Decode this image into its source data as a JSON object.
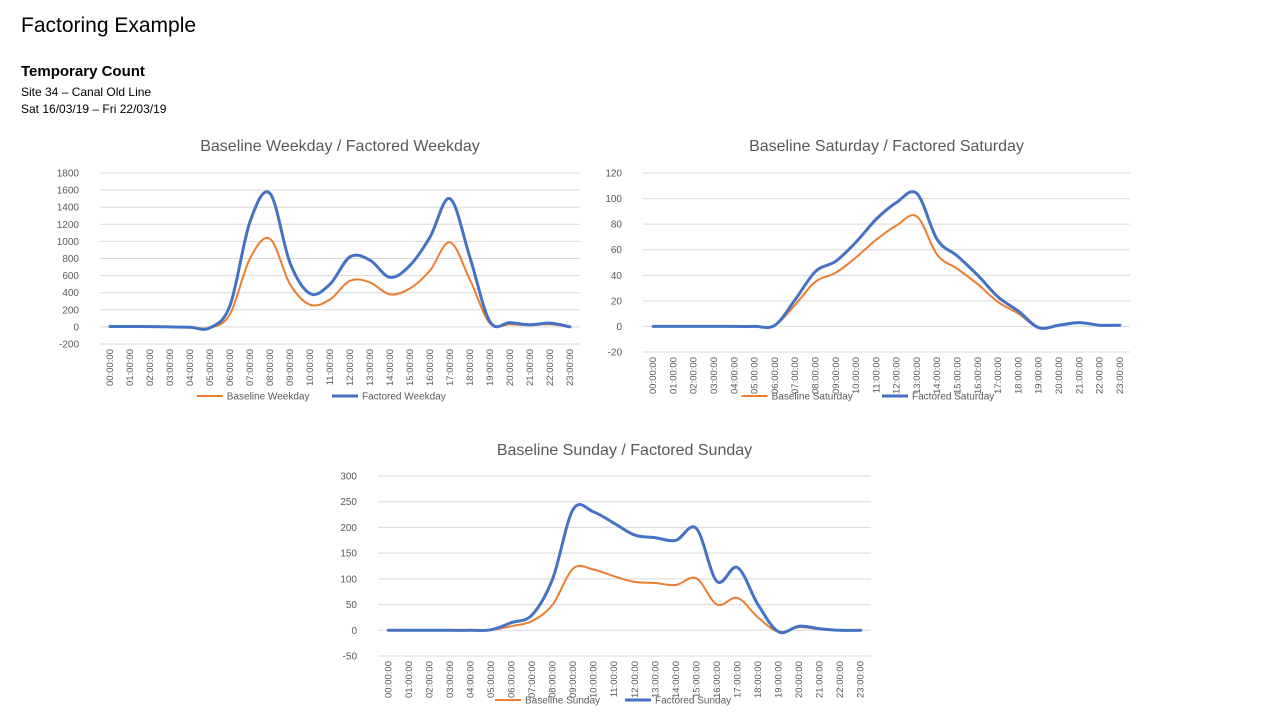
{
  "page": {
    "title": "Factoring Example",
    "subtitle": "Temporary Count",
    "site": "Site 34 – Canal Old Line",
    "dates": "Sat 16/03/19  – Fri 22/03/19"
  },
  "colors": {
    "baseline": "#ED7D31",
    "factored": "#4472C4",
    "grid": "#D9D9D9",
    "text": "#595959"
  },
  "chart_data": [
    {
      "type": "line",
      "title": "Baseline Weekday / Factored Weekday",
      "categories": [
        "00:00:00",
        "01:00:00",
        "02:00:00",
        "03:00:00",
        "04:00:00",
        "05:00:00",
        "06:00:00",
        "07:00:00",
        "08:00:00",
        "09:00:00",
        "10:00:00",
        "11:00:00",
        "12:00:00",
        "13:00:00",
        "14:00:00",
        "15:00:00",
        "16:00:00",
        "17:00:00",
        "18:00:00",
        "19:00:00",
        "20:00:00",
        "21:00:00",
        "22:00:00",
        "23:00:00"
      ],
      "ylim": [
        -200,
        1800
      ],
      "yticks": [
        -200,
        0,
        200,
        400,
        600,
        800,
        1000,
        1200,
        1400,
        1600,
        1800
      ],
      "grid": true,
      "legend": "bottom",
      "series": [
        {
          "name": "Baseline Weekday",
          "values": [
            5,
            5,
            3,
            0,
            -5,
            -10,
            150,
            800,
            1030,
            500,
            260,
            320,
            540,
            520,
            380,
            450,
            660,
            990,
            550,
            40,
            30,
            20,
            30,
            0
          ]
        },
        {
          "name": "Factored Weekday",
          "values": [
            5,
            5,
            3,
            0,
            -5,
            -10,
            250,
            1230,
            1560,
            750,
            390,
            500,
            820,
            780,
            580,
            720,
            1050,
            1500,
            810,
            60,
            50,
            25,
            45,
            0
          ]
        }
      ]
    },
    {
      "type": "line",
      "title": "Baseline Saturday / Factored Saturday",
      "categories": [
        "00:00:00",
        "01:00:00",
        "02:00:00",
        "03:00:00",
        "04:00:00",
        "05:00:00",
        "06:00:00",
        "07:00:00",
        "08:00:00",
        "09:00:00",
        "10:00:00",
        "11:00:00",
        "12:00:00",
        "13:00:00",
        "14:00:00",
        "15:00:00",
        "16:00:00",
        "17:00:00",
        "18:00:00",
        "19:00:00",
        "20:00:00",
        "21:00:00",
        "22:00:00",
        "23:00:00"
      ],
      "ylim": [
        -20,
        120
      ],
      "yticks": [
        -20,
        0,
        20,
        40,
        60,
        80,
        100,
        120
      ],
      "grid": true,
      "legend": "bottom",
      "series": [
        {
          "name": "Baseline Saturday",
          "values": [
            0,
            0,
            0,
            0,
            0,
            0,
            1,
            17,
            35,
            42,
            54,
            68,
            79,
            86,
            56,
            45,
            33,
            19,
            10,
            -1,
            1,
            3,
            1,
            1
          ]
        },
        {
          "name": "Factored Saturday",
          "values": [
            0,
            0,
            0,
            0,
            0,
            0,
            1,
            21,
            43,
            51,
            66,
            84,
            97,
            104,
            68,
            55,
            40,
            23,
            12,
            -1,
            1,
            3,
            1,
            1
          ]
        }
      ]
    },
    {
      "type": "line",
      "title": "Baseline Sunday / Factored Sunday",
      "categories": [
        "00:00:00",
        "01:00:00",
        "02:00:00",
        "03:00:00",
        "04:00:00",
        "05:00:00",
        "06:00:00",
        "07:00:00",
        "08:00:00",
        "09:00:00",
        "10:00:00",
        "11:00:00",
        "12:00:00",
        "13:00:00",
        "14:00:00",
        "15:00:00",
        "16:00:00",
        "17:00:00",
        "18:00:00",
        "19:00:00",
        "20:00:00",
        "21:00:00",
        "22:00:00",
        "23:00:00"
      ],
      "ylim": [
        -50,
        300
      ],
      "yticks": [
        -50,
        0,
        50,
        100,
        150,
        200,
        250,
        300
      ],
      "grid": true,
      "legend": "bottom",
      "series": [
        {
          "name": "Baseline Sunday",
          "values": [
            0,
            0,
            0,
            0,
            0,
            1,
            8,
            18,
            50,
            120,
            118,
            105,
            94,
            92,
            88,
            101,
            50,
            63,
            25,
            -3,
            6,
            2,
            0,
            0
          ]
        },
        {
          "name": "Factored Sunday",
          "values": [
            0,
            0,
            0,
            0,
            0,
            1,
            15,
            30,
            100,
            235,
            230,
            208,
            185,
            180,
            175,
            198,
            95,
            122,
            50,
            -3,
            8,
            3,
            0,
            0
          ]
        }
      ]
    }
  ]
}
